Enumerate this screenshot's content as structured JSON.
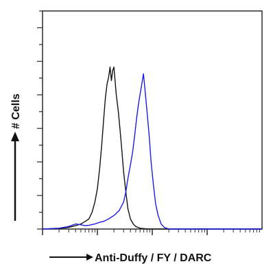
{
  "chart_data": {
    "type": "line",
    "title": "",
    "xlabel": "Anti-Duffy / FY / DARC",
    "ylabel": "# Cells",
    "x_scale": "log",
    "xlim": [
      1,
      10000
    ],
    "ylim": [
      0,
      100
    ],
    "x_tick_labels": [],
    "y_tick_labels": [],
    "grid": false,
    "series": [
      {
        "color": "#111111",
        "points": [
          [
            1.0,
            0.0
          ],
          [
            2.0,
            0.3
          ],
          [
            3.0,
            1.0
          ],
          [
            4.0,
            2.0
          ],
          [
            5.0,
            3.0
          ],
          [
            6.0,
            4.5
          ],
          [
            7.0,
            6.0
          ],
          [
            8.0,
            10.0
          ],
          [
            9.0,
            16.0
          ],
          [
            10.0,
            24.0
          ],
          [
            11.0,
            36.0
          ],
          [
            12.0,
            50.0
          ],
          [
            13.0,
            65.0
          ],
          [
            14.0,
            78.0
          ],
          [
            15.0,
            86.0
          ],
          [
            16.0,
            90.0
          ],
          [
            16.5,
            93.0
          ],
          [
            17.0,
            96.0
          ],
          [
            17.5,
            92.0
          ],
          [
            18.0,
            88.0
          ],
          [
            19.0,
            94.0
          ],
          [
            20.0,
            96.0
          ],
          [
            21.0,
            88.0
          ],
          [
            22.0,
            80.0
          ],
          [
            24.0,
            70.0
          ],
          [
            26.0,
            58.0
          ],
          [
            28.0,
            46.0
          ],
          [
            30.0,
            34.0
          ],
          [
            33.0,
            22.0
          ],
          [
            36.0,
            12.0
          ],
          [
            40.0,
            6.0
          ],
          [
            45.0,
            3.0
          ],
          [
            50.0,
            1.5
          ],
          [
            60.0,
            0.5
          ],
          [
            80.0,
            0.0
          ],
          [
            10000,
            0.0
          ]
        ]
      },
      {
        "color": "#1a1ae6",
        "points": [
          [
            1.0,
            0.0
          ],
          [
            2.0,
            0.5
          ],
          [
            3.0,
            1.5
          ],
          [
            4.0,
            3.0
          ],
          [
            5.0,
            2.5
          ],
          [
            6.0,
            2.0
          ],
          [
            7.0,
            2.2
          ],
          [
            9.0,
            3.0
          ],
          [
            11.0,
            4.0
          ],
          [
            13.0,
            4.5
          ],
          [
            16.0,
            6.0
          ],
          [
            20.0,
            8.0
          ],
          [
            25.0,
            11.0
          ],
          [
            30.0,
            16.0
          ],
          [
            33.0,
            22.0
          ],
          [
            36.0,
            30.0
          ],
          [
            40.0,
            38.0
          ],
          [
            44.0,
            46.0
          ],
          [
            48.0,
            56.0
          ],
          [
            52.0,
            66.0
          ],
          [
            56.0,
            74.0
          ],
          [
            60.0,
            80.0
          ],
          [
            63.0,
            84.0
          ],
          [
            66.0,
            88.0
          ],
          [
            69.0,
            92.0
          ],
          [
            72.0,
            86.0
          ],
          [
            75.0,
            80.0
          ],
          [
            80.0,
            70.0
          ],
          [
            88.0,
            55.0
          ],
          [
            95.0,
            40.0
          ],
          [
            105.0,
            26.0
          ],
          [
            115.0,
            15.0
          ],
          [
            128.0,
            8.0
          ],
          [
            145.0,
            3.0
          ],
          [
            165.0,
            1.0
          ],
          [
            200.0,
            0.0
          ],
          [
            10000,
            0.0
          ]
        ]
      }
    ]
  }
}
